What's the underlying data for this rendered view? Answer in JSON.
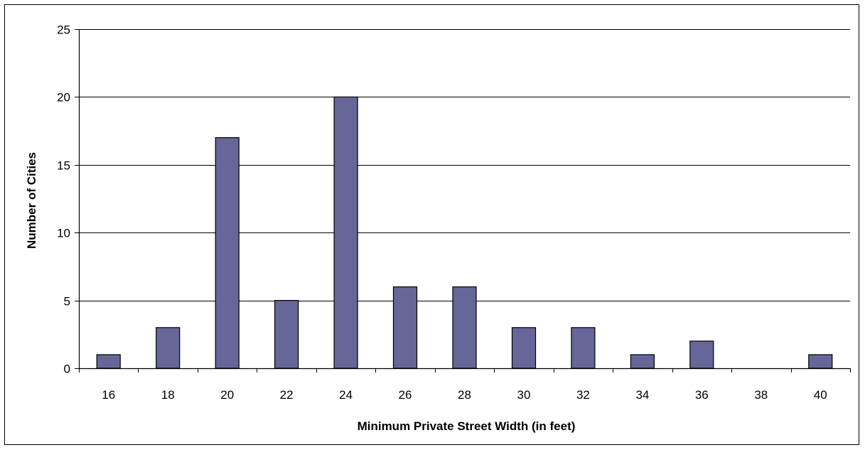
{
  "chart_data": {
    "type": "bar",
    "title": "",
    "xlabel": "Minimum Private Street Width (in feet)",
    "ylabel": "Number of Cities",
    "categories": [
      "16",
      "18",
      "20",
      "22",
      "24",
      "26",
      "28",
      "30",
      "32",
      "34",
      "36",
      "38",
      "40"
    ],
    "values": [
      1,
      3,
      17,
      5,
      20,
      6,
      6,
      3,
      3,
      1,
      2,
      0,
      1
    ],
    "ylim": [
      0,
      25
    ],
    "yticks": [
      0,
      5,
      10,
      15,
      20,
      25
    ],
    "grid": true,
    "legend": "none",
    "colors": {
      "bar_fill": "#666699",
      "bar_stroke": "#000000",
      "grid": "#000000"
    }
  }
}
